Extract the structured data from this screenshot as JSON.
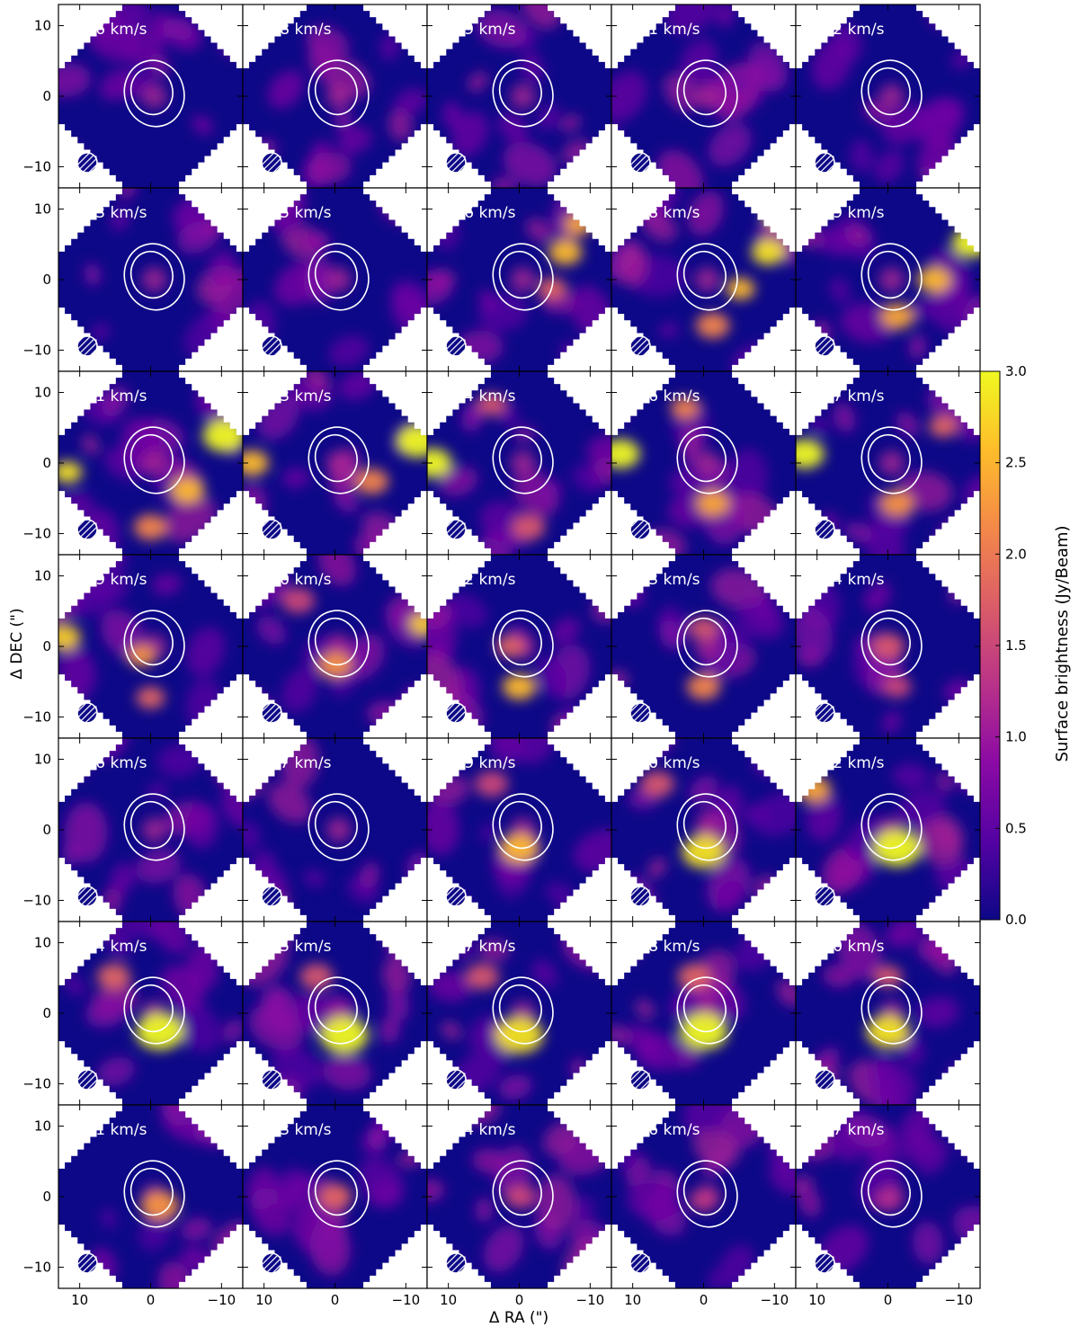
{
  "chart_data": {
    "type": "heatmap",
    "title": "",
    "xlabel": "Δ RA (\")",
    "ylabel": "Δ DEC (\")",
    "xlim": [
      13,
      -13
    ],
    "ylim": [
      -13,
      13
    ],
    "x_ticks": [
      "10",
      "0",
      "−10"
    ],
    "x_tick_values": [
      10,
      0,
      -10
    ],
    "y_ticks": [
      "10",
      "0",
      "−10"
    ],
    "y_tick_values": [
      10,
      0,
      -10
    ],
    "colorbar": {
      "label": "Surface brightness (Jy/Beam)",
      "range": [
        0.0,
        3.0
      ],
      "ticks": [
        "0.0",
        "0.5",
        "1.0",
        "1.5",
        "2.0",
        "2.5",
        "3.0"
      ],
      "tick_values": [
        0.0,
        0.5,
        1.0,
        1.5,
        2.0,
        2.5,
        3.0
      ],
      "colormap": "plasma",
      "colors": [
        "#0d0887",
        "#5402a3",
        "#8b0aa5",
        "#b93289",
        "#db5c68",
        "#f48849",
        "#febd2a",
        "#f0f921"
      ]
    },
    "contour_color": "#ffffff",
    "beam_marker": "hatched-circle",
    "panels": [
      {
        "label": "1.6 km/s"
      },
      {
        "label": "1.8 km/s"
      },
      {
        "label": "1.9 km/s"
      },
      {
        "label": "2.1 km/s"
      },
      {
        "label": "2.2 km/s"
      },
      {
        "label": "2.3 km/s"
      },
      {
        "label": "2.5 km/s"
      },
      {
        "label": "2.6 km/s"
      },
      {
        "label": "2.8 km/s"
      },
      {
        "label": "2.9 km/s"
      },
      {
        "label": "3.1 km/s"
      },
      {
        "label": "3.3 km/s"
      },
      {
        "label": "3.4 km/s"
      },
      {
        "label": "3.6 km/s"
      },
      {
        "label": "3.7 km/s"
      },
      {
        "label": "3.9 km/s"
      },
      {
        "label": "4.0 km/s"
      },
      {
        "label": "4.2 km/s"
      },
      {
        "label": "4.3 km/s"
      },
      {
        "label": "4.4 km/s"
      },
      {
        "label": "4.6 km/s"
      },
      {
        "label": "4.7 km/s"
      },
      {
        "label": "4.9 km/s"
      },
      {
        "label": "5.0 km/s"
      },
      {
        "label": "5.2 km/s"
      },
      {
        "label": "5.4 km/s"
      },
      {
        "label": "5.5 km/s"
      },
      {
        "label": "5.7 km/s"
      },
      {
        "label": "5.8 km/s"
      },
      {
        "label": "6.0 km/s"
      },
      {
        "label": "6.1 km/s"
      },
      {
        "label": "6.3 km/s"
      },
      {
        "label": "6.4 km/s"
      },
      {
        "label": "6.6 km/s"
      },
      {
        "label": "6.7 km/s"
      }
    ]
  }
}
